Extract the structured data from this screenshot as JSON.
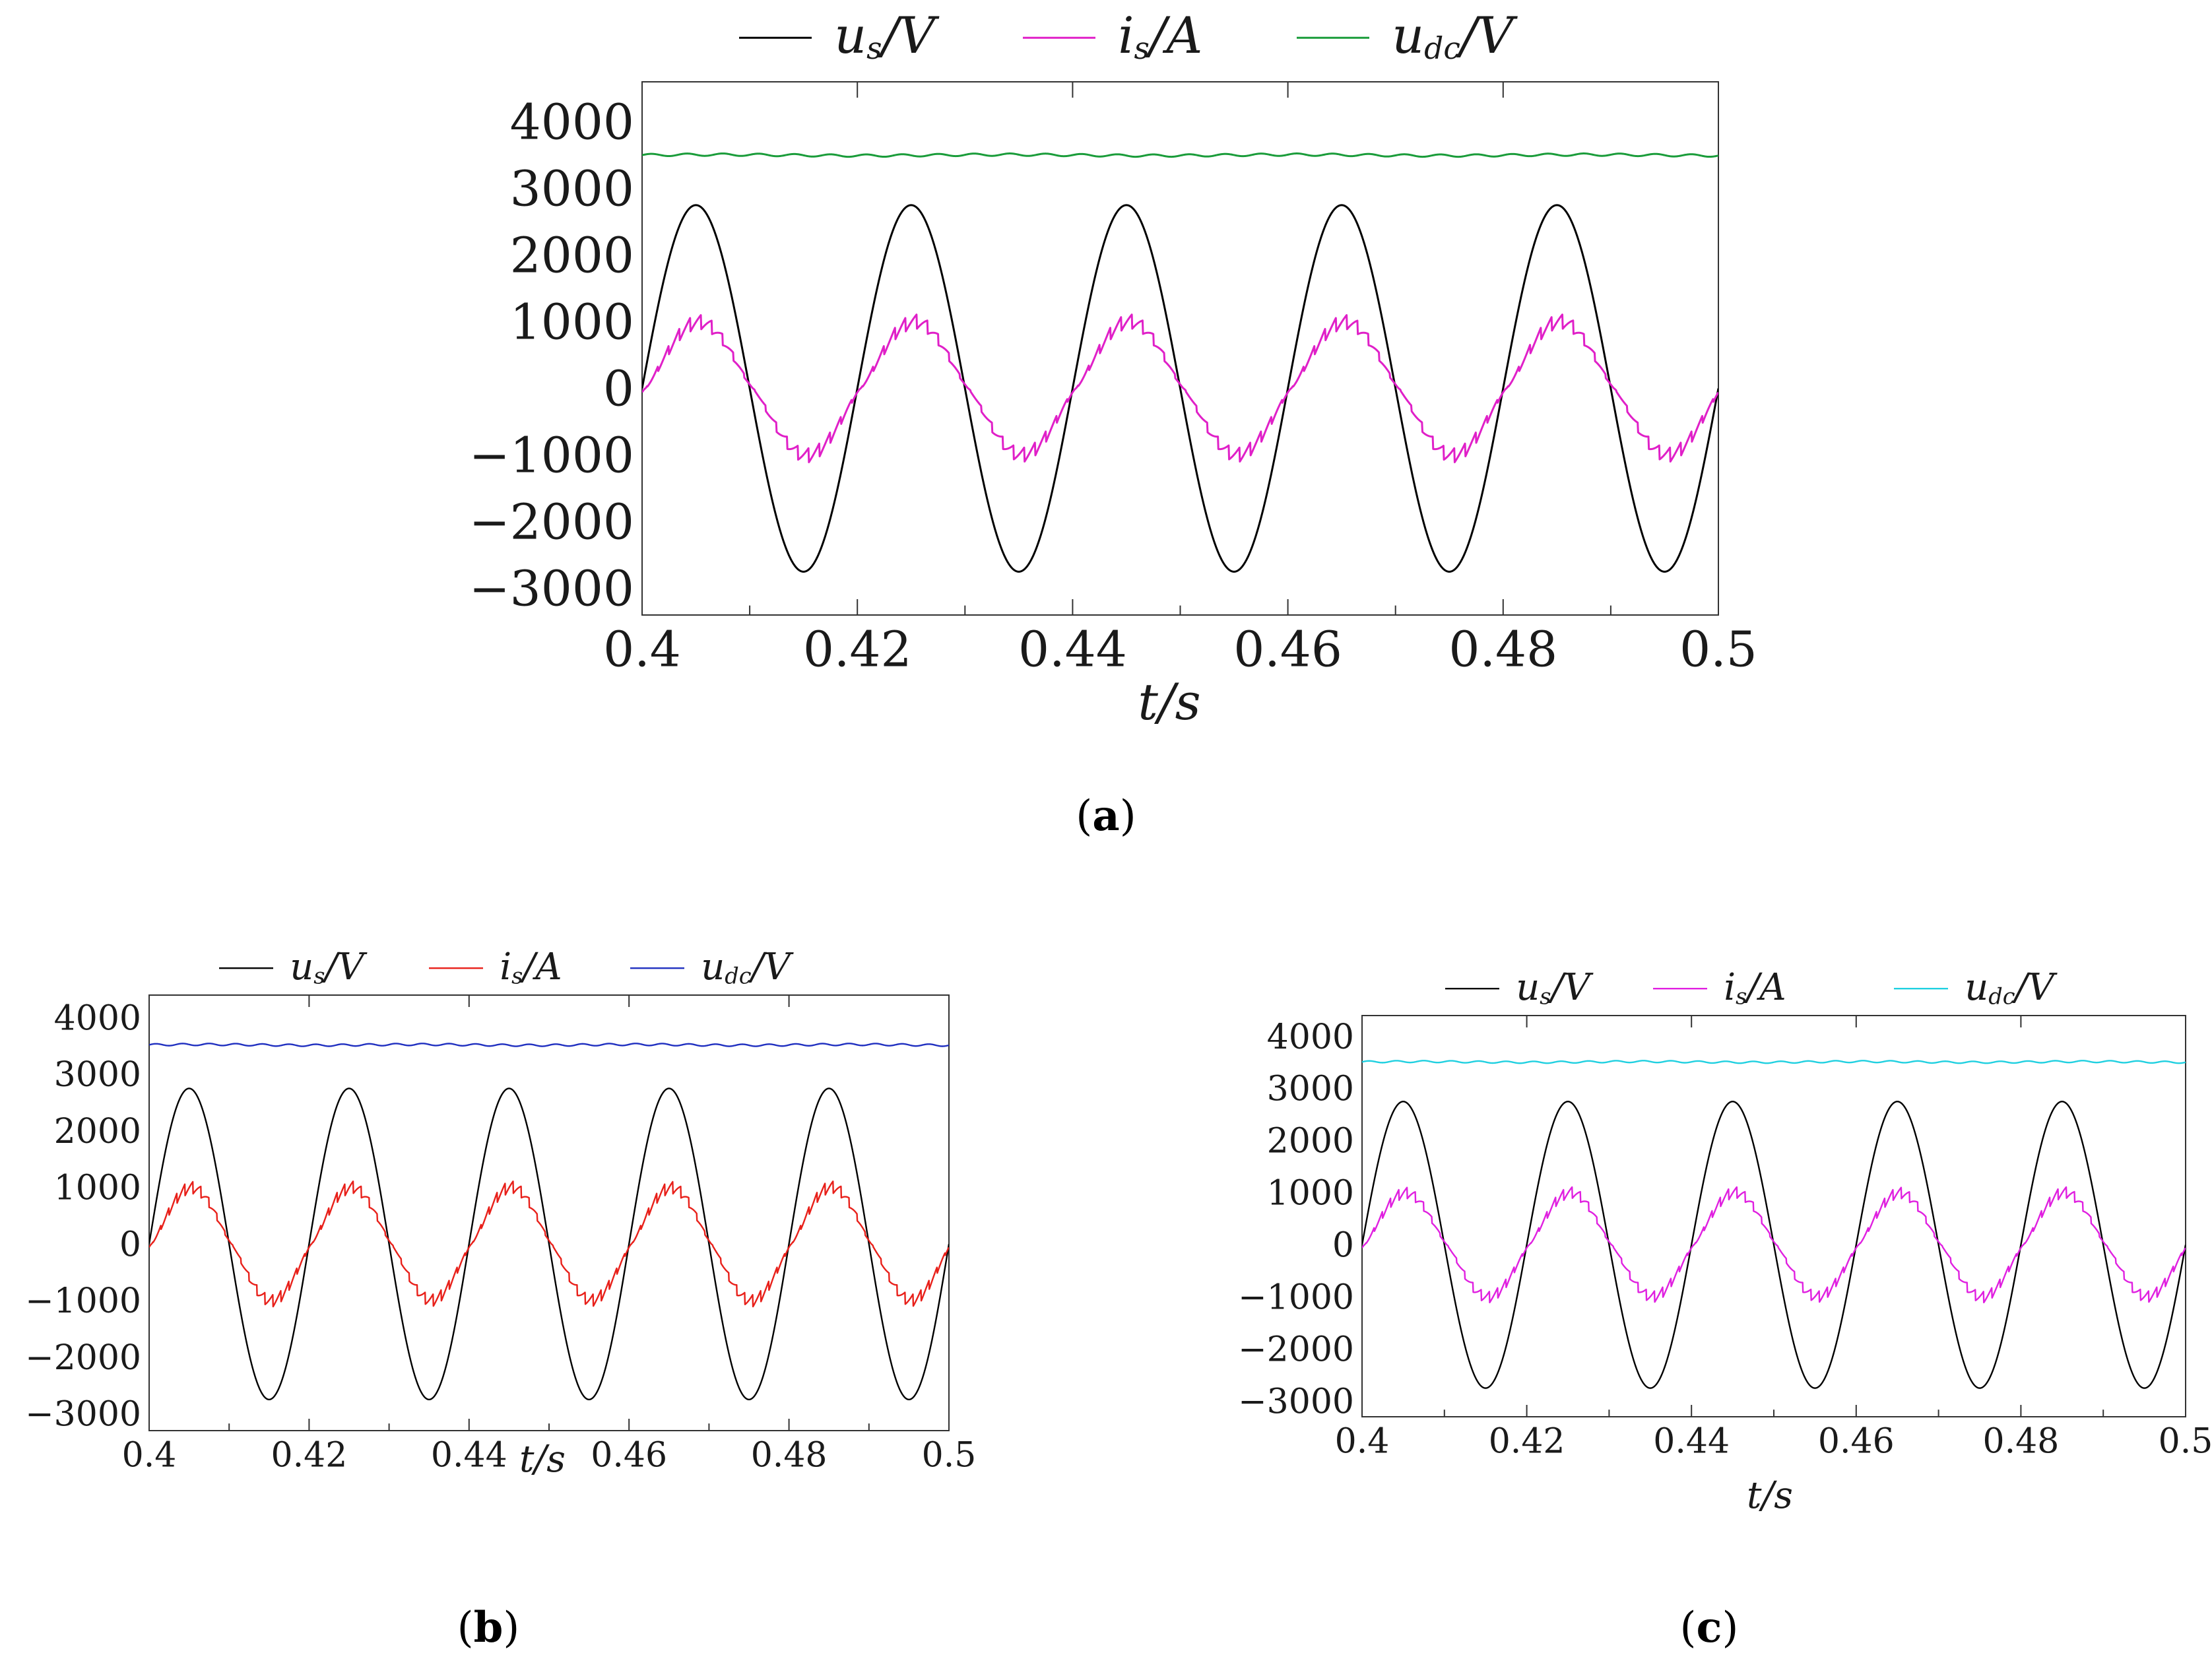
{
  "figure": {
    "captions": [
      "(a)",
      "(b)",
      "(c)"
    ]
  },
  "chart_data": [
    {
      "id": "a",
      "type": "line",
      "caption_letter": "a",
      "xlabel": "t/s",
      "ylabel": "",
      "xlim": [
        0.4,
        0.5
      ],
      "ylim": [
        -3400,
        4600
      ],
      "xticks": [
        0.4,
        0.42,
        0.44,
        0.46,
        0.48,
        0.5
      ],
      "xtick_labels": [
        "0.4",
        "0.42",
        "0.44",
        "0.46",
        "0.48",
        "0.5"
      ],
      "yticks": [
        4000,
        3000,
        2000,
        1000,
        0,
        -1000,
        -2000,
        -3000
      ],
      "ytick_labels": [
        "4000",
        "3000",
        "2000",
        "1000",
        "0",
        "−1000",
        "−2000",
        "−3000"
      ],
      "legend": {
        "position": "top",
        "entries": [
          {
            "base": "u",
            "sub": "s",
            "unit": "/V",
            "color": "#000000"
          },
          {
            "base": "i",
            "sub": "s",
            "unit": "/A",
            "color": "#e020c8"
          },
          {
            "base": "u",
            "sub": "dc",
            "unit": "/V",
            "color": "#1a9c3a"
          }
        ]
      },
      "series": [
        {
          "name": "us/V",
          "color": "#000000",
          "model": {
            "kind": "sine",
            "amplitude": 2750,
            "frequency_hz": 50,
            "start_t": 0.4,
            "offset": 0
          }
        },
        {
          "name": "is/A",
          "color": "#e020c8",
          "model": {
            "kind": "sine_ripple",
            "amplitude": 1000,
            "frequency_hz": 50,
            "ripple_amplitude": 110,
            "ripple_frequency_hz": 1000,
            "lag_s": 0.0003,
            "start_t": 0.4
          }
        },
        {
          "name": "udc/V",
          "color": "#1a9c3a",
          "model": {
            "kind": "dc_ripple",
            "level": 3500,
            "ripple_amplitude": 18,
            "ripple_frequency_hz": 300,
            "start_t": 0.4
          }
        }
      ]
    },
    {
      "id": "b",
      "type": "line",
      "caption_letter": "b",
      "xlabel": "t/s",
      "ylabel": "",
      "xlim": [
        0.4,
        0.5
      ],
      "ylim": [
        -3300,
        4400
      ],
      "xticks": [
        0.4,
        0.42,
        0.44,
        0.46,
        0.48,
        0.5
      ],
      "xtick_labels": [
        "0.4",
        "0.42",
        "0.44",
        "0.46",
        "0.48",
        "0.5"
      ],
      "yticks": [
        4000,
        3000,
        2000,
        1000,
        0,
        -1000,
        -2000,
        -3000
      ],
      "ytick_labels": [
        "4000",
        "3000",
        "2000",
        "1000",
        "0",
        "−1000",
        "−2000",
        "−3000"
      ],
      "legend": {
        "position": "top",
        "entries": [
          {
            "base": "u",
            "sub": "s",
            "unit": "/V",
            "color": "#000000"
          },
          {
            "base": "i",
            "sub": "s",
            "unit": "/A",
            "color": "#e8201a"
          },
          {
            "base": "u",
            "sub": "dc",
            "unit": "/V",
            "color": "#2030c0"
          }
        ]
      },
      "series": [
        {
          "name": "us/V",
          "color": "#000000",
          "model": {
            "kind": "sine",
            "amplitude": 2750,
            "frequency_hz": 50,
            "start_t": 0.4,
            "offset": 0
          }
        },
        {
          "name": "is/A",
          "color": "#e8201a",
          "model": {
            "kind": "sine_ripple",
            "amplitude": 1000,
            "frequency_hz": 50,
            "ripple_amplitude": 110,
            "ripple_frequency_hz": 1000,
            "lag_s": 0.0003,
            "start_t": 0.4
          }
        },
        {
          "name": "udc/V",
          "color": "#2030c0",
          "model": {
            "kind": "dc_ripple",
            "level": 3520,
            "ripple_amplitude": 18,
            "ripple_frequency_hz": 300,
            "start_t": 0.4
          }
        }
      ]
    },
    {
      "id": "c",
      "type": "line",
      "caption_letter": "c",
      "xlabel": "t/s",
      "ylabel": "",
      "xlim": [
        0.4,
        0.5
      ],
      "ylim": [
        -3300,
        4400
      ],
      "xticks": [
        0.4,
        0.42,
        0.44,
        0.46,
        0.48,
        0.5
      ],
      "xtick_labels": [
        "0.4",
        "0.42",
        "0.44",
        "0.46",
        "0.48",
        "0.5"
      ],
      "yticks": [
        4000,
        3000,
        2000,
        1000,
        0,
        -1000,
        -2000,
        -3000
      ],
      "ytick_labels": [
        "4000",
        "3000",
        "2000",
        "1000",
        "0",
        "−1000",
        "−2000",
        "−3000"
      ],
      "legend": {
        "position": "top",
        "entries": [
          {
            "base": "u",
            "sub": "s",
            "unit": "/V",
            "color": "#000000"
          },
          {
            "base": "i",
            "sub": "s",
            "unit": "/A",
            "color": "#e020e0"
          },
          {
            "base": "u",
            "sub": "dc",
            "unit": "/V",
            "color": "#20d0e0"
          }
        ]
      },
      "series": [
        {
          "name": "us/V",
          "color": "#000000",
          "model": {
            "kind": "sine",
            "amplitude": 2750,
            "frequency_hz": 50,
            "start_t": 0.4,
            "offset": 0
          }
        },
        {
          "name": "is/A",
          "color": "#e020e0",
          "model": {
            "kind": "sine_ripple",
            "amplitude": 1000,
            "frequency_hz": 50,
            "ripple_amplitude": 110,
            "ripple_frequency_hz": 1000,
            "lag_s": 0.0003,
            "start_t": 0.4
          }
        },
        {
          "name": "udc/V",
          "color": "#20d0e0",
          "model": {
            "kind": "dc_ripple",
            "level": 3510,
            "ripple_amplitude": 18,
            "ripple_frequency_hz": 300,
            "start_t": 0.4
          }
        }
      ]
    }
  ]
}
